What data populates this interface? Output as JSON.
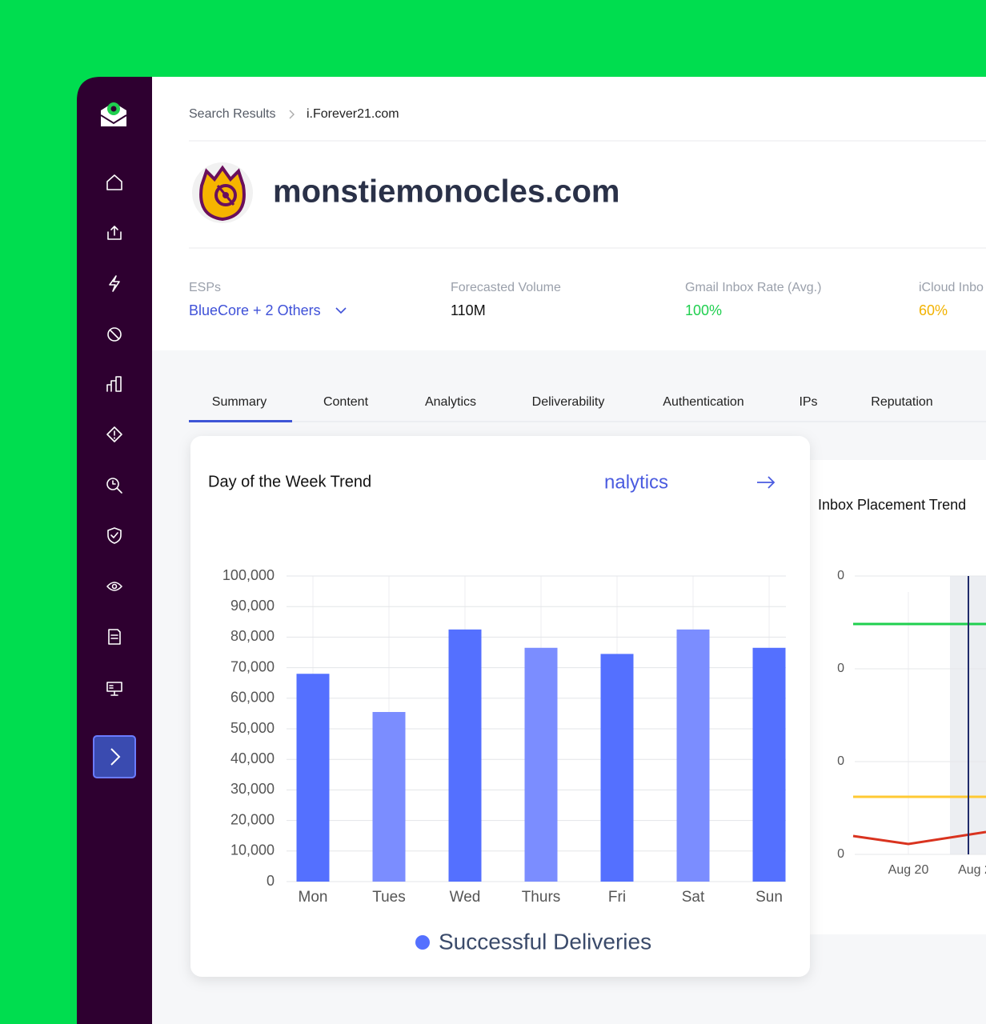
{
  "breadcrumb": [
    "Search Results",
    "i.Forever21.com"
  ],
  "domain": "monstiemonocles.com",
  "stats": [
    {
      "label": "ESPs",
      "value": "BlueCore + 2 Others"
    },
    {
      "label": "Forecasted Volume",
      "value": "110M"
    },
    {
      "label": "Gmail Inbox Rate (Avg.)",
      "value": "100%"
    },
    {
      "label": "iCloud Inbo",
      "value": "60%"
    }
  ],
  "tabs": [
    "Summary",
    "Content",
    "Analytics",
    "Deliverability",
    "Authentication",
    "IPs",
    "Reputation"
  ],
  "active_tab": 0,
  "chart_data": {
    "type": "bar",
    "title": "Day of the Week Trend",
    "link": "nalytics",
    "categories": [
      "Mon",
      "Tues",
      "Wed",
      "Thurs",
      "Fri",
      "Sat",
      "Sun"
    ],
    "series": [
      {
        "name": "Successful Deliveries",
        "color": "#5470ff",
        "values": [
          68000,
          55500,
          82500,
          76500,
          74500,
          82500,
          76500
        ]
      }
    ],
    "bar_colors": [
      "#5470ff",
      "#7b8dff",
      "#5470ff",
      "#7b8dff",
      "#5470ff",
      "#7b8dff",
      "#5470ff"
    ],
    "ylim": [
      0,
      100000
    ],
    "yticks": [
      0,
      {
        "value": 10000,
        "label": "10,000"
      },
      {
        "value": 20000,
        "label": "20,000"
      },
      {
        "value": 30000,
        "label": "30,000"
      },
      {
        "value": 40000,
        "label": "40,000"
      },
      {
        "value": 50000,
        "label": "50,000"
      },
      {
        "value": 60000,
        "label": "60,000"
      },
      {
        "value": 70000,
        "label": "70,000"
      },
      {
        "value": 80000,
        "label": "80,000"
      },
      {
        "value": 90000,
        "label": "90,000"
      },
      {
        "value": 100000,
        "label": "100,000"
      }
    ],
    "grid": true
  },
  "inbox_panel": {
    "title": "Inbox Placement Trend",
    "y_labels": [
      "0",
      "0",
      "0",
      "0"
    ],
    "x_labels": [
      "Aug 20",
      "Aug 2"
    ]
  }
}
